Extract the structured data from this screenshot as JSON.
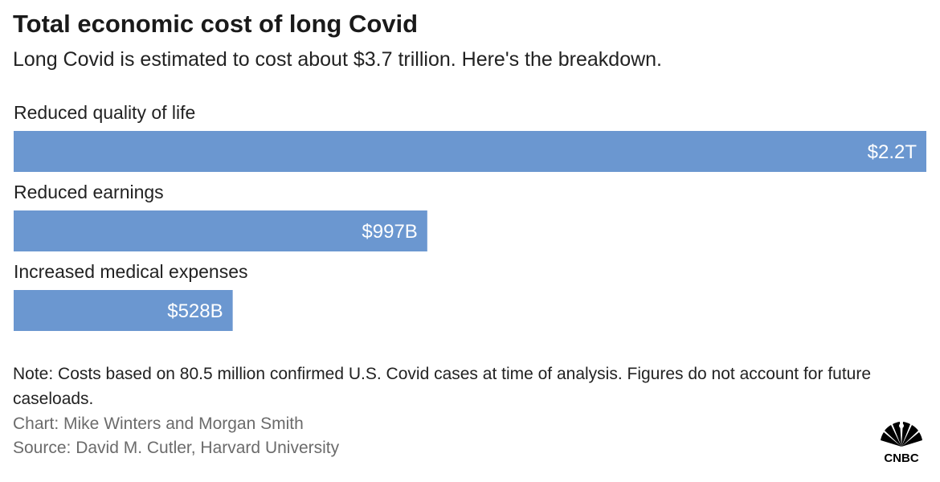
{
  "title": "Total economic cost of long Covid",
  "subtitle": "Long Covid is estimated to cost about $3.7 trillion. Here's the breakdown.",
  "chart_data": {
    "type": "bar",
    "orientation": "horizontal",
    "title": "Total economic cost of long Covid",
    "subtitle": "Long Covid is estimated to cost about $3.7 trillion. Here's the breakdown.",
    "categories": [
      "Reduced quality of life",
      "Reduced earnings",
      "Increased medical expenses"
    ],
    "values": [
      2200,
      997,
      528
    ],
    "value_unit": "billion USD",
    "data_labels": [
      "$2.2T",
      "$997B",
      "$528B"
    ],
    "bar_color": "#6b97d0",
    "grid": false,
    "xlim": [
      0,
      2200
    ]
  },
  "note": "Note: Costs based on 80.5 million confirmed U.S. Covid cases at time of analysis. Figures do not account for future caseloads.",
  "credit_chart": "Chart: Mike Winters and Morgan Smith",
  "credit_source": "Source: David M. Cutler, Harvard University",
  "logo": {
    "text": "CNBC",
    "icon": "nbc-peacock-icon",
    "color": "#000000"
  }
}
